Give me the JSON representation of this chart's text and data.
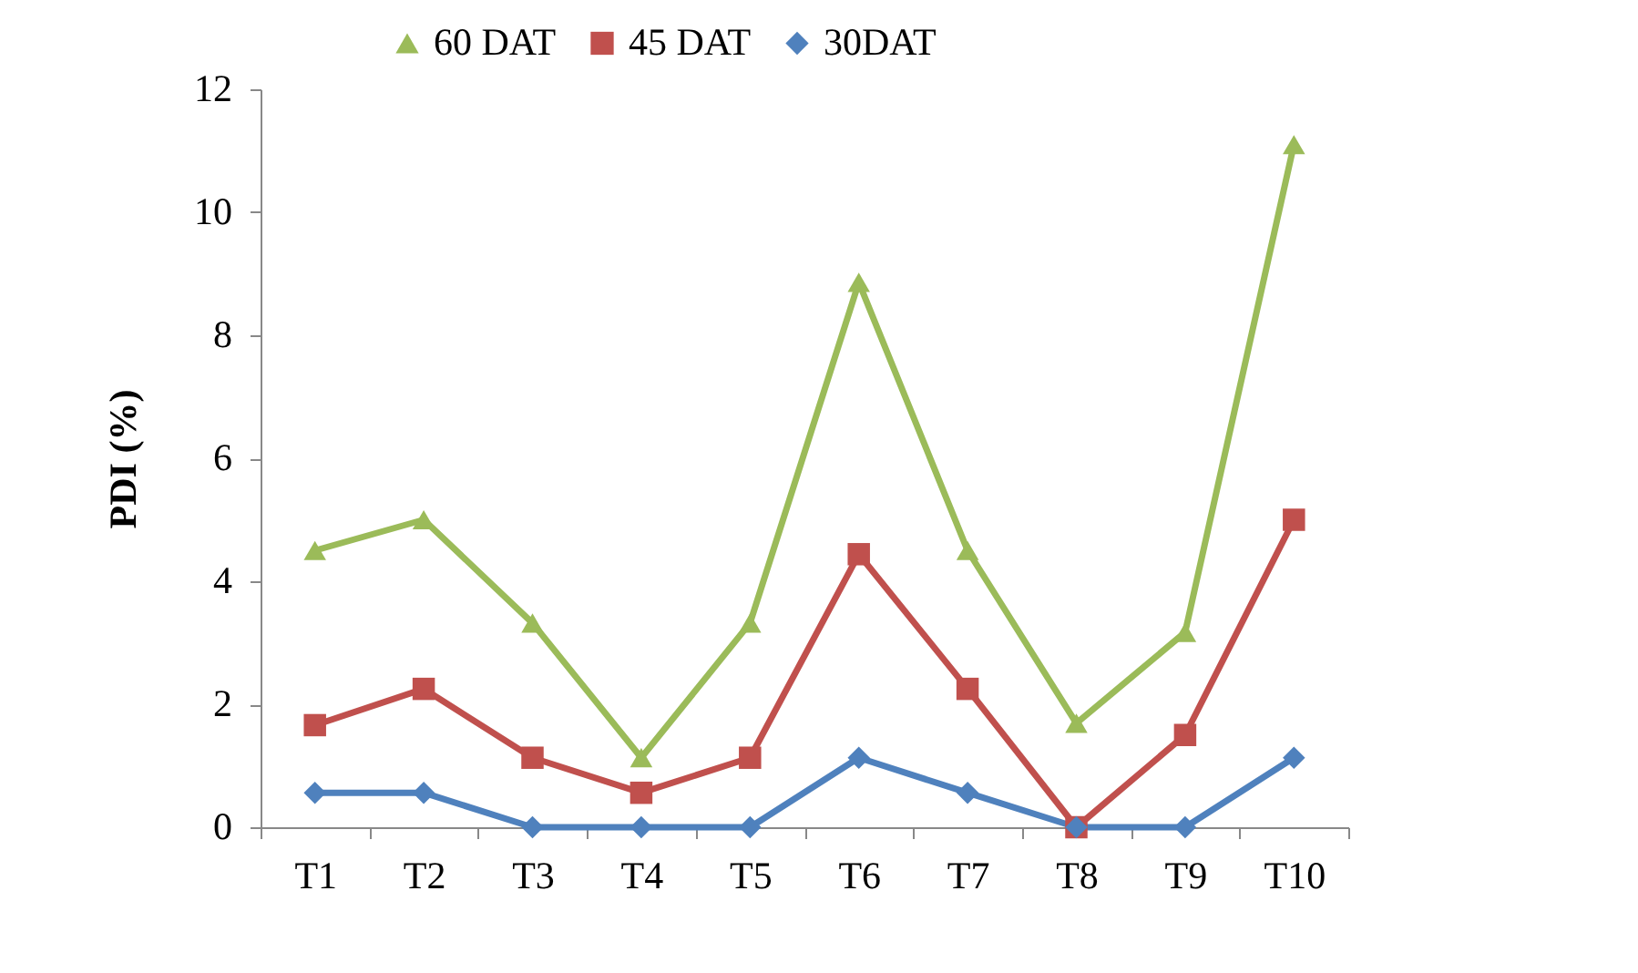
{
  "chart_data": {
    "type": "line",
    "ylabel": "PDI (%)",
    "categories": [
      "T1",
      "T2",
      "T3",
      "T4",
      "T5",
      "T6",
      "T7",
      "T8",
      "T9",
      "T10"
    ],
    "series": [
      {
        "name": "60 DAT",
        "color": "#9bbb59",
        "marker": "triangle",
        "values": [
          4.5,
          5.0,
          3.32,
          1.13,
          3.32,
          8.86,
          4.5,
          1.69,
          3.17,
          11.1
        ]
      },
      {
        "name": "45 DAT",
        "color": "#c0504d",
        "marker": "square",
        "values": [
          1.66,
          2.25,
          1.13,
          0.56,
          1.13,
          4.44,
          2.25,
          0,
          1.5,
          5.0
        ]
      },
      {
        "name": "30DAT",
        "color": "#4f81bd",
        "marker": "diamond",
        "values": [
          0.56,
          0.56,
          0,
          0,
          0,
          1.13,
          0.56,
          0,
          0,
          1.13
        ]
      }
    ],
    "ylim": [
      0,
      12
    ],
    "yticks": [
      0,
      2,
      4,
      6,
      8,
      10,
      12
    ],
    "grid": false,
    "legend": "top",
    "line_style": "solid"
  }
}
